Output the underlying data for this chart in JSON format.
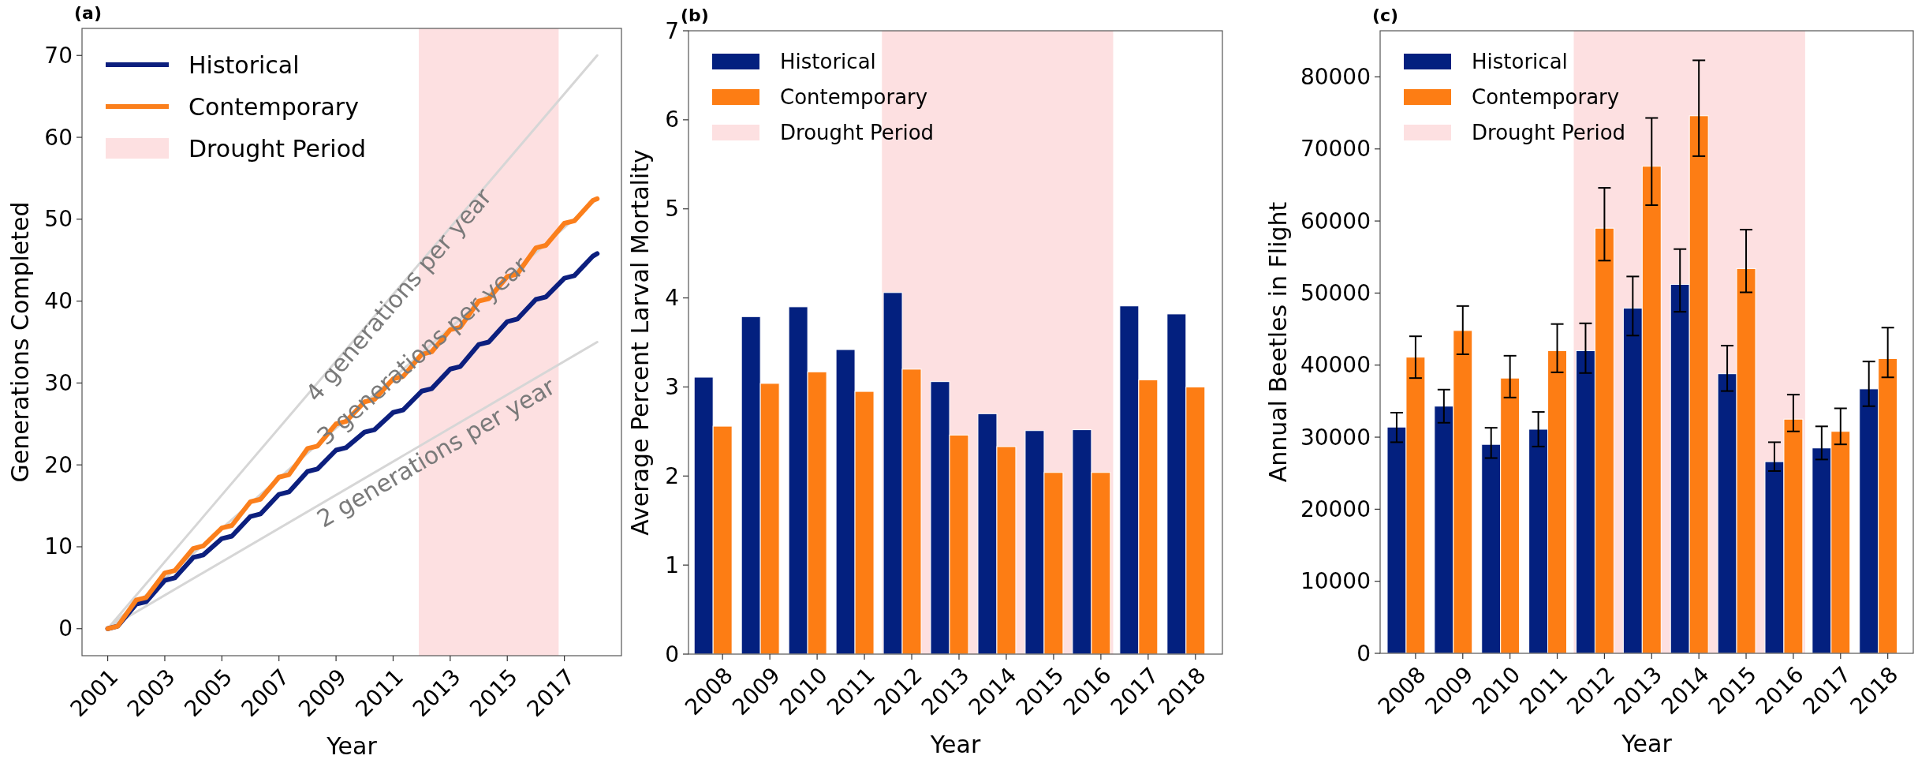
{
  "chart_data": [
    {
      "type": "line",
      "title": "(a)",
      "xlabel": "Year",
      "ylabel": "Generations Completed",
      "xlim": [
        2000.1,
        2019.0
      ],
      "ylim": [
        -3.3,
        73.3
      ],
      "xticks": [
        2001,
        2003,
        2005,
        2007,
        2009,
        2011,
        2013,
        2015,
        2017
      ],
      "yticks": [
        0,
        10,
        20,
        30,
        40,
        50,
        60,
        70
      ],
      "legend": "top left",
      "series": [
        {
          "color": "#d6d6d6",
          "x": [
            2001,
            2018.15
          ],
          "values": [
            0,
            70
          ]
        },
        {
          "color": "#d6d6d6",
          "x": [
            2001,
            2018.15
          ],
          "values": [
            0,
            52.5
          ]
        },
        {
          "color": "#d6d6d6",
          "x": [
            2001,
            2018.15
          ],
          "values": [
            0,
            35
          ]
        },
        {
          "name": "Historical",
          "color": "#0c1f7e",
          "x": [
            2001,
            2001.35,
            2002,
            2002.35,
            2003,
            2003.35,
            2004,
            2004.35,
            2005,
            2005.35,
            2006,
            2006.35,
            2007,
            2007.35,
            2008,
            2008.35,
            2009,
            2009.35,
            2010,
            2010.35,
            2011,
            2011.35,
            2012,
            2012.35,
            2013,
            2013.35,
            2014,
            2014.35,
            2015,
            2015.35,
            2016,
            2016.35,
            2017,
            2017.35,
            2018,
            2018.15
          ],
          "values": [
            0,
            0.3,
            3,
            3.3,
            5.9,
            6.2,
            8.7,
            9,
            11,
            11.3,
            13.7,
            14,
            16.4,
            16.7,
            19.2,
            19.5,
            21.8,
            22.1,
            24,
            24.3,
            26.4,
            26.7,
            29,
            29.3,
            31.7,
            32,
            34.7,
            35,
            37.5,
            37.8,
            40.2,
            40.5,
            42.8,
            43.1,
            45.5,
            45.8
          ]
        },
        {
          "name": "Contemporary",
          "color": "#fb7f1c",
          "x": [
            2001,
            2001.35,
            2002,
            2002.35,
            2003,
            2003.35,
            2004,
            2004.35,
            2005,
            2005.35,
            2006,
            2006.35,
            2007,
            2007.35,
            2008,
            2008.35,
            2009,
            2009.35,
            2010,
            2010.35,
            2011,
            2011.35,
            2012,
            2012.35,
            2013,
            2013.35,
            2014,
            2014.35,
            2015,
            2015.35,
            2016,
            2016.35,
            2017,
            2017.35,
            2018,
            2018.15
          ],
          "values": [
            0,
            0.3,
            3.5,
            3.8,
            6.8,
            7.1,
            9.8,
            10.1,
            12.3,
            12.6,
            15.5,
            15.8,
            18.5,
            18.8,
            22,
            22.3,
            25,
            25.3,
            27.7,
            28,
            30.5,
            30.8,
            33.5,
            33.8,
            36.5,
            36.8,
            40,
            40.3,
            43,
            43.3,
            46.5,
            46.8,
            49.5,
            49.8,
            52.3,
            52.5
          ]
        }
      ],
      "bands": [
        {
          "axis": "x",
          "from": 2011.9,
          "to": 2016.8,
          "label": "Drought Period",
          "color": "#fde0e1"
        }
      ],
      "annotations": [
        "4 generations per year",
        "3 generations per year",
        "2 generations per year"
      ]
    },
    {
      "type": "bar",
      "title": "(b)",
      "xlabel": "Year",
      "ylabel": "Average Percent Larval Mortality",
      "x": [
        2008,
        2009,
        2010,
        2011,
        2012,
        2013,
        2014,
        2015,
        2016,
        2017,
        2018
      ],
      "xlim": [
        2007.28,
        2018.57
      ],
      "ylim": [
        0,
        7
      ],
      "xticks": [
        2008,
        2009,
        2010,
        2011,
        2012,
        2013,
        2014,
        2015,
        2016,
        2017,
        2018
      ],
      "yticks": [
        0,
        1,
        2,
        3,
        4,
        5,
        6,
        7
      ],
      "legend": "top left",
      "series": [
        {
          "name": "Historical",
          "color": "#03207f",
          "values": [
            3.11,
            3.79,
            3.9,
            3.42,
            4.06,
            3.06,
            2.7,
            2.51,
            2.52,
            3.91,
            3.82
          ]
        },
        {
          "name": "Contemporary",
          "color": "#fd7d14",
          "values": [
            2.56,
            3.04,
            3.17,
            2.95,
            3.2,
            2.46,
            2.33,
            2.04,
            2.04,
            3.08,
            3.0
          ]
        }
      ],
      "bands": [
        {
          "axis": "x",
          "from": 2011.37,
          "to": 2016.26,
          "label": "Drought Period",
          "color": "#fde0e1"
        }
      ]
    },
    {
      "type": "bar",
      "title": "(c)",
      "xlabel": "Year",
      "ylabel": "Annual Beetles in Flight",
      "x": [
        2008,
        2009,
        2010,
        2011,
        2012,
        2013,
        2014,
        2015,
        2016,
        2017,
        2018
      ],
      "xlim": [
        2007.25,
        2018.54
      ],
      "ylim": [
        0,
        86400
      ],
      "xticks": [
        2008,
        2009,
        2010,
        2011,
        2012,
        2013,
        2014,
        2015,
        2016,
        2017,
        2018
      ],
      "yticks": [
        0,
        10000,
        20000,
        30000,
        40000,
        50000,
        60000,
        70000,
        80000
      ],
      "legend": "top left",
      "series": [
        {
          "name": "Historical",
          "color": "#03207f",
          "values": [
            31400,
            34300,
            29000,
            31100,
            42000,
            47900,
            51200,
            38800,
            26600,
            28500,
            36700
          ],
          "errors": [
            [
              29300,
              33400
            ],
            [
              32000,
              36600
            ],
            [
              27100,
              31300
            ],
            [
              28700,
              33500
            ],
            [
              38900,
              45800
            ],
            [
              44100,
              52300
            ],
            [
              47400,
              56100
            ],
            [
              36400,
              42700
            ],
            [
              25300,
              29300
            ],
            [
              26900,
              31500
            ],
            [
              34300,
              40500
            ]
          ]
        },
        {
          "name": "Contemporary",
          "color": "#fd7d14",
          "values": [
            41100,
            44800,
            38200,
            42000,
            59000,
            67600,
            74600,
            53400,
            32500,
            30800,
            40900
          ],
          "errors": [
            [
              38200,
              44000
            ],
            [
              41500,
              48200
            ],
            [
              35500,
              41300
            ],
            [
              39000,
              45700
            ],
            [
              54500,
              64600
            ],
            [
              62200,
              74300
            ],
            [
              69000,
              82300
            ],
            [
              50100,
              58800
            ],
            [
              30800,
              35900
            ],
            [
              29000,
              34000
            ],
            [
              38300,
              45200
            ]
          ]
        }
      ],
      "bands": [
        {
          "axis": "x",
          "from": 2011.35,
          "to": 2016.25,
          "label": "Drought Period",
          "color": "#fde0e1"
        }
      ]
    }
  ]
}
